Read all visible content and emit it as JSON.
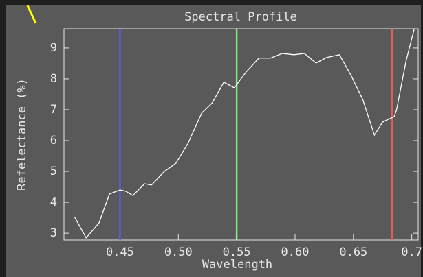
{
  "chart_data": {
    "type": "line",
    "title": "Spectral Profile",
    "x_label": "Wavelength",
    "y_label": "Refelectance (%)",
    "x": [
      0.411,
      0.421,
      0.432,
      0.441,
      0.45,
      0.455,
      0.461,
      0.471,
      0.477,
      0.488,
      0.498,
      0.508,
      0.52,
      0.529,
      0.539,
      0.548,
      0.558,
      0.569,
      0.579,
      0.589,
      0.599,
      0.608,
      0.618,
      0.627,
      0.638,
      0.648,
      0.658,
      0.668,
      0.675,
      0.685,
      0.687,
      0.695,
      0.704
    ],
    "series": [
      {
        "color": "#ffffff",
        "values": [
          3.53,
          2.85,
          3.33,
          4.27,
          4.4,
          4.36,
          4.22,
          4.6,
          4.56,
          5.0,
          5.27,
          5.89,
          6.89,
          7.22,
          7.89,
          7.71,
          8.22,
          8.67,
          8.67,
          8.82,
          8.78,
          8.82,
          8.51,
          8.69,
          8.78,
          8.11,
          7.33,
          6.18,
          6.6,
          6.78,
          7.0,
          8.56,
          9.9
        ]
      }
    ],
    "markers": [
      {
        "value": 0.45,
        "color": "#5a5ae6"
      },
      {
        "value": 0.55,
        "color": "#7de87d"
      },
      {
        "value": 0.683,
        "color": "#e85a5a"
      }
    ],
    "xlim": [
      0.402,
      0.7055
    ],
    "ylim": [
      2.78,
      9.62
    ],
    "xticks": [
      0.45,
      {
        "value": 0.5,
        "label": "0.50"
      },
      0.55,
      {
        "value": 0.6,
        "label": "0.60"
      },
      0.65,
      0.7
    ],
    "yticks": [
      3,
      4,
      5,
      6,
      7,
      8,
      9
    ]
  }
}
